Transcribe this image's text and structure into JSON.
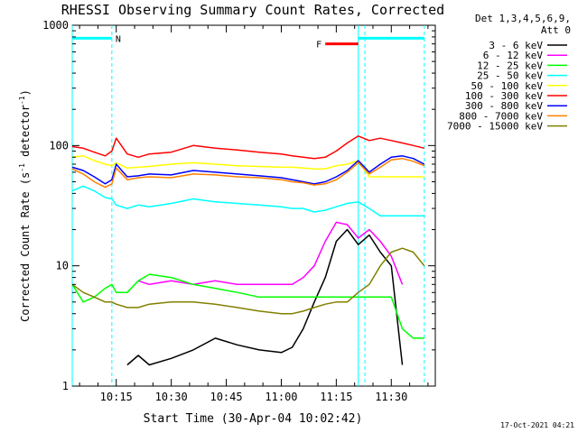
{
  "chart_data": {
    "type": "line",
    "title": "RHESSI Observing Summary Count Rates, Corrected",
    "xlabel": "Start Time (30-Apr-04 10:02:42)",
    "ylabel_main": "Corrected Count Rate (s",
    "ylabel_sup1": "-1",
    "ylabel_mid": " detector",
    "ylabel_sup2": "-1",
    "ylabel_end": ")",
    "yscale": "log",
    "ylim": [
      1,
      1000
    ],
    "xlim_minutes": [
      10.05,
      11.7
    ],
    "xticks": [
      {
        "t": 10.25,
        "label": "10:15"
      },
      {
        "t": 10.5,
        "label": "10:30"
      },
      {
        "t": 10.75,
        "label": "10:45"
      },
      {
        "t": 11.0,
        "label": "11:00"
      },
      {
        "t": 11.25,
        "label": "11:15"
      },
      {
        "t": 11.5,
        "label": "11:30"
      }
    ],
    "yticks": [
      {
        "v": 1,
        "label": "1"
      },
      {
        "v": 10,
        "label": "10"
      },
      {
        "v": 100,
        "label": "100"
      },
      {
        "v": 1000,
        "label": "1000"
      }
    ],
    "legend_header": [
      "Det 1,3,4,5,6,9,",
      "Att 0"
    ],
    "timestamp": "17-Oct-2021 04:21",
    "x": [
      10.05,
      10.1,
      10.15,
      10.2,
      10.23,
      10.25,
      10.3,
      10.35,
      10.4,
      10.5,
      10.6,
      10.7,
      10.8,
      10.9,
      11.0,
      11.05,
      11.1,
      11.15,
      11.2,
      11.25,
      11.3,
      11.35,
      11.4,
      11.45,
      11.5,
      11.55,
      11.6,
      11.65
    ],
    "series": [
      {
        "name": "3 - 6 keV",
        "color": "#000000",
        "values": [
          null,
          null,
          null,
          null,
          null,
          null,
          1.5,
          1.8,
          1.5,
          1.7,
          2.0,
          2.5,
          2.2,
          2.0,
          1.9,
          2.1,
          3.0,
          5.0,
          8.0,
          16.0,
          20.0,
          15.0,
          18.0,
          13.0,
          10.0,
          1.5,
          null,
          null
        ]
      },
      {
        "name": "6 - 12 keV",
        "color": "#ff00ff",
        "values": [
          null,
          null,
          null,
          null,
          null,
          null,
          null,
          7.5,
          7.0,
          7.5,
          7.0,
          7.5,
          7.0,
          7.0,
          7.0,
          7.0,
          8.0,
          10.0,
          16.0,
          23.0,
          22.0,
          17.0,
          20.0,
          16.0,
          12.0,
          7.0,
          null,
          null
        ]
      },
      {
        "name": "12 - 25 keV",
        "color": "#00ff00",
        "values": [
          7.0,
          5.0,
          5.5,
          6.5,
          7.0,
          6.0,
          6.0,
          7.5,
          8.5,
          8.0,
          7.0,
          6.5,
          6.0,
          5.5,
          5.5,
          5.5,
          5.5,
          5.5,
          5.5,
          5.5,
          5.5,
          5.5,
          5.5,
          5.5,
          5.5,
          3.0,
          2.5,
          2.5
        ]
      },
      {
        "name": "25 - 50 keV",
        "color": "#00ffff",
        "values": [
          42.0,
          46.0,
          42.0,
          37.0,
          36.0,
          32.0,
          30.0,
          32.0,
          31.0,
          33.0,
          36.0,
          34.0,
          33.0,
          32.0,
          31.0,
          30.0,
          30.0,
          28.0,
          29.0,
          31.0,
          33.0,
          34.0,
          30.0,
          26.0,
          26.0,
          26.0,
          26.0,
          26.0
        ]
      },
      {
        "name": "50 - 100 keV",
        "color": "#ffff00",
        "values": [
          80.0,
          82.0,
          75.0,
          70.0,
          68.0,
          72.0,
          65.0,
          66.0,
          67.0,
          70.0,
          72.0,
          70.0,
          68.0,
          67.0,
          66.0,
          66.0,
          65.0,
          64.0,
          64.0,
          68.0,
          70.0,
          75.0,
          55.0,
          55.0,
          55.0,
          55.0,
          55.0,
          55.0
        ]
      },
      {
        "name": "100 - 300 keV",
        "color": "#ff0000",
        "values": [
          98.0,
          95.0,
          88.0,
          82.0,
          90.0,
          115.0,
          85.0,
          80.0,
          85.0,
          88.0,
          100.0,
          95.0,
          92.0,
          88.0,
          85.0,
          82.0,
          80.0,
          78.0,
          80.0,
          90.0,
          105.0,
          120.0,
          110.0,
          115.0,
          110.0,
          105.0,
          100.0,
          95.0
        ]
      },
      {
        "name": "300 - 800 keV",
        "color": "#0000ff",
        "values": [
          66.0,
          62.0,
          55.0,
          48.0,
          52.0,
          70.0,
          55.0,
          56.0,
          58.0,
          57.0,
          62.0,
          60.0,
          58.0,
          56.0,
          54.0,
          52.0,
          50.0,
          48.0,
          50.0,
          55.0,
          62.0,
          75.0,
          60.0,
          70.0,
          80.0,
          82.0,
          78.0,
          70.0
        ]
      },
      {
        "name": "800 - 7000 keV",
        "color": "#ff8000",
        "values": [
          64.0,
          58.0,
          50.0,
          45.0,
          48.0,
          65.0,
          52.0,
          54.0,
          55.0,
          54.0,
          58.0,
          57.0,
          55.0,
          54.0,
          52.0,
          50.0,
          49.0,
          47.0,
          48.0,
          52.0,
          60.0,
          72.0,
          58.0,
          66.0,
          76.0,
          78.0,
          74.0,
          68.0
        ]
      },
      {
        "name": "7000 - 15000 keV",
        "color": "#808000",
        "values": [
          7.0,
          6.0,
          5.5,
          5.0,
          5.0,
          4.8,
          4.5,
          4.5,
          4.8,
          5.0,
          5.0,
          4.8,
          4.5,
          4.2,
          4.0,
          4.0,
          4.2,
          4.5,
          4.8,
          5.0,
          5.0,
          6.0,
          7.0,
          10.0,
          13.0,
          14.0,
          13.0,
          10.0
        ]
      }
    ],
    "bars": [
      {
        "label": "N",
        "color": "#00ffff",
        "t0": 10.05,
        "t1": 10.23,
        "value": 780
      },
      {
        "label": "",
        "color": "#00ffff",
        "t0": 11.35,
        "t1": 11.65,
        "value": 780
      },
      {
        "label": "F",
        "color": "#ff0000",
        "t0": 11.2,
        "t1": 11.35,
        "value": 700
      }
    ],
    "markers": [
      {
        "t": 10.05,
        "style": "solid"
      },
      {
        "t": 10.23,
        "style": "dashed"
      },
      {
        "t": 11.35,
        "style": "solid"
      },
      {
        "t": 11.38,
        "style": "dashed"
      },
      {
        "t": 11.65,
        "style": "dashed"
      }
    ],
    "grid": false,
    "legend_placement": "right"
  }
}
